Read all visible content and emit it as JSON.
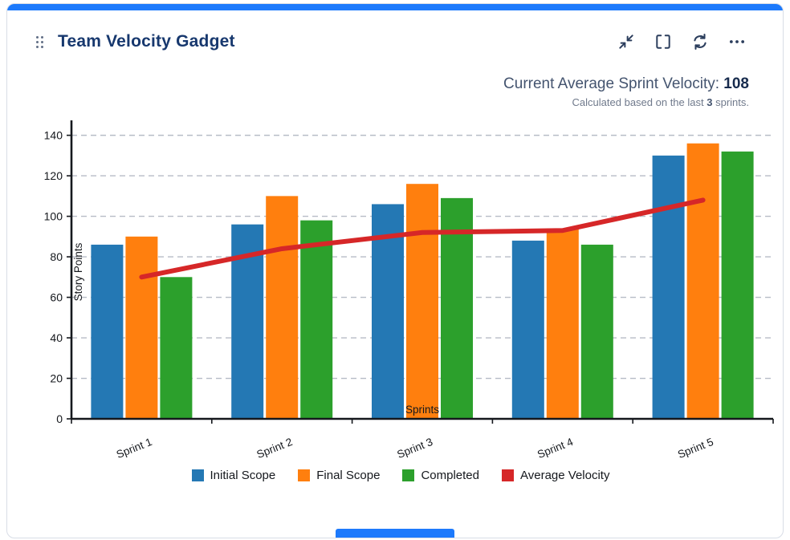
{
  "header": {
    "title": "Team Velocity Gadget",
    "icons": [
      "drag-handle-icon",
      "collapse-icon",
      "fullscreen-icon",
      "refresh-icon",
      "ellipsis-icon"
    ]
  },
  "summary": {
    "label": "Current Average Sprint Velocity:",
    "value": "108",
    "note_prefix": "Calculated based on the last",
    "note_value": "3",
    "note_suffix": "sprints."
  },
  "accents": {
    "top_bar": "#1d7afc",
    "bottom_bar": "#1d7afc"
  },
  "chart_data": {
    "type": "bar",
    "categories": [
      "Sprint 1",
      "Sprint 2",
      "Sprint 3",
      "Sprint 4",
      "Sprint 5"
    ],
    "series": [
      {
        "name": "Initial Scope",
        "color": "#2478b4",
        "values": [
          86,
          96,
          106,
          88,
          130
        ]
      },
      {
        "name": "Final Scope",
        "color": "#ff7f0e",
        "values": [
          90,
          110,
          116,
          94,
          136
        ]
      },
      {
        "name": "Completed",
        "color": "#2ca02c",
        "values": [
          70,
          98,
          109,
          86,
          132
        ]
      }
    ],
    "line_series": {
      "name": "Average Velocity",
      "color": "#d62728",
      "values": [
        70,
        84,
        92,
        93,
        108
      ]
    },
    "xlabel": "Sprints",
    "ylabel": "Story Points",
    "ylim": [
      0,
      145
    ],
    "yticks": [
      0,
      20,
      40,
      60,
      80,
      100,
      120,
      140
    ],
    "grid": "horizontal-dashed",
    "legend_position": "bottom"
  }
}
